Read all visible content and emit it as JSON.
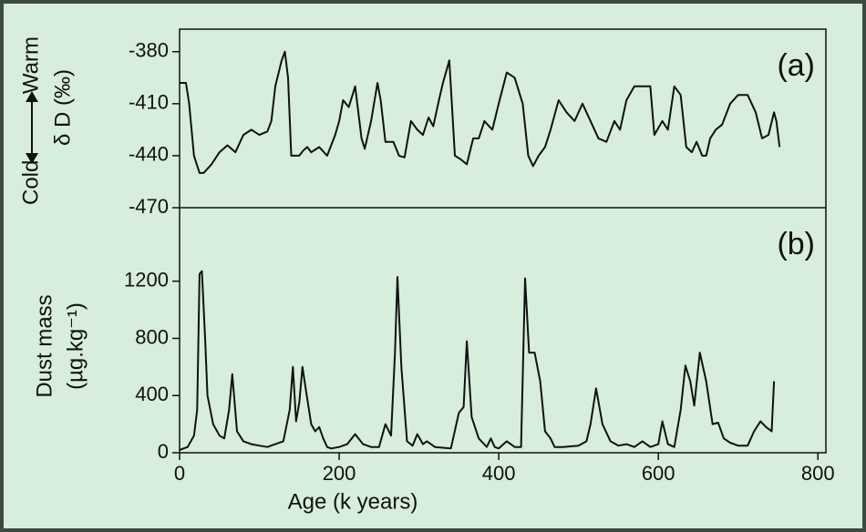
{
  "chart_data": [
    {
      "type": "line",
      "label": "(a)",
      "ylabel_cold": "Cold",
      "ylabel_warm": "Warm",
      "ylabel": "δ D (‰)",
      "xlim": [
        0,
        810
      ],
      "ylim": [
        -470,
        -367
      ],
      "yticks": [
        -380,
        -410,
        -440,
        -470
      ],
      "series": [
        {
          "name": "δD",
          "color": "#111111",
          "x": [
            0,
            8,
            12,
            18,
            25,
            30,
            40,
            50,
            60,
            70,
            80,
            90,
            100,
            110,
            115,
            120,
            128,
            132,
            136,
            140,
            150,
            155,
            160,
            165,
            175,
            185,
            195,
            200,
            205,
            212,
            220,
            228,
            232,
            240,
            248,
            252,
            258,
            268,
            275,
            282,
            290,
            298,
            305,
            312,
            318,
            325,
            330,
            338,
            345,
            352,
            360,
            368,
            375,
            382,
            392,
            400,
            410,
            420,
            430,
            437,
            443,
            450,
            458,
            465,
            475,
            485,
            495,
            505,
            515,
            525,
            535,
            545,
            552,
            560,
            570,
            582,
            590,
            595,
            605,
            612,
            620,
            628,
            635,
            642,
            648,
            655,
            660,
            665,
            672,
            680,
            690,
            700,
            712,
            722,
            730,
            738,
            745,
            748,
            752
          ],
          "values": [
            -398,
            -398,
            -410,
            -440,
            -450,
            -450,
            -445,
            -438,
            -434,
            -438,
            -428,
            -425,
            -428,
            -426,
            -420,
            -400,
            -385,
            -380,
            -395,
            -440,
            -440,
            -437,
            -435,
            -438,
            -435,
            -440,
            -428,
            -420,
            -408,
            -412,
            -400,
            -430,
            -436,
            -420,
            -398,
            -408,
            -432,
            -432,
            -440,
            -441,
            -420,
            -425,
            -428,
            -418,
            -423,
            -408,
            -398,
            -385,
            -440,
            -442,
            -445,
            -430,
            -430,
            -420,
            -425,
            -410,
            -392,
            -395,
            -410,
            -440,
            -446,
            -440,
            -435,
            -425,
            -408,
            -415,
            -420,
            -410,
            -420,
            -430,
            -432,
            -420,
            -425,
            -408,
            -400,
            -400,
            -400,
            -428,
            -420,
            -425,
            -400,
            -405,
            -435,
            -438,
            -432,
            -440,
            -440,
            -430,
            -425,
            -422,
            -410,
            -405,
            -405,
            -415,
            -430,
            -428,
            -415,
            -420,
            -435
          ]
        }
      ]
    },
    {
      "type": "line",
      "label": "(b)",
      "ylabel": "Dust mass",
      "ylabel2": "(µg.kg⁻¹)",
      "xlabel": "Age (k years)",
      "xlim": [
        0,
        810
      ],
      "ylim": [
        0,
        1714
      ],
      "yticks": [
        0,
        400,
        800,
        1200
      ],
      "xticks": [
        0,
        200,
        400,
        600,
        800
      ],
      "series": [
        {
          "name": "Dust",
          "color": "#111111",
          "x": [
            0,
            10,
            18,
            22,
            25,
            28,
            32,
            35,
            42,
            50,
            56,
            62,
            66,
            72,
            80,
            90,
            100,
            110,
            120,
            130,
            138,
            142,
            146,
            150,
            154,
            158,
            165,
            170,
            175,
            180,
            185,
            190,
            200,
            210,
            220,
            230,
            240,
            250,
            258,
            265,
            270,
            273,
            278,
            285,
            292,
            298,
            305,
            310,
            320,
            340,
            350,
            356,
            360,
            366,
            375,
            385,
            390,
            395,
            400,
            410,
            420,
            428,
            433,
            438,
            445,
            452,
            458,
            465,
            470,
            480,
            500,
            510,
            515,
            522,
            530,
            540,
            550,
            560,
            570,
            580,
            590,
            600,
            605,
            612,
            620,
            628,
            634,
            640,
            645,
            652,
            660,
            668,
            675,
            682,
            690,
            700,
            712,
            720,
            728,
            735,
            742,
            745
          ],
          "values": [
            20,
            40,
            120,
            300,
            1250,
            1270,
            800,
            400,
            200,
            120,
            100,
            300,
            550,
            150,
            80,
            60,
            50,
            40,
            60,
            80,
            300,
            600,
            220,
            350,
            600,
            450,
            200,
            150,
            180,
            100,
            40,
            30,
            40,
            60,
            130,
            60,
            40,
            40,
            200,
            120,
            700,
            1230,
            600,
            80,
            50,
            130,
            60,
            80,
            40,
            30,
            280,
            320,
            780,
            250,
            100,
            40,
            100,
            40,
            30,
            80,
            40,
            40,
            1220,
            700,
            700,
            500,
            150,
            100,
            40,
            40,
            50,
            80,
            200,
            450,
            200,
            80,
            50,
            60,
            40,
            80,
            40,
            60,
            220,
            60,
            40,
            300,
            610,
            500,
            330,
            700,
            500,
            200,
            210,
            100,
            70,
            50,
            50,
            150,
            220,
            180,
            150,
            500
          ]
        }
      ]
    }
  ]
}
